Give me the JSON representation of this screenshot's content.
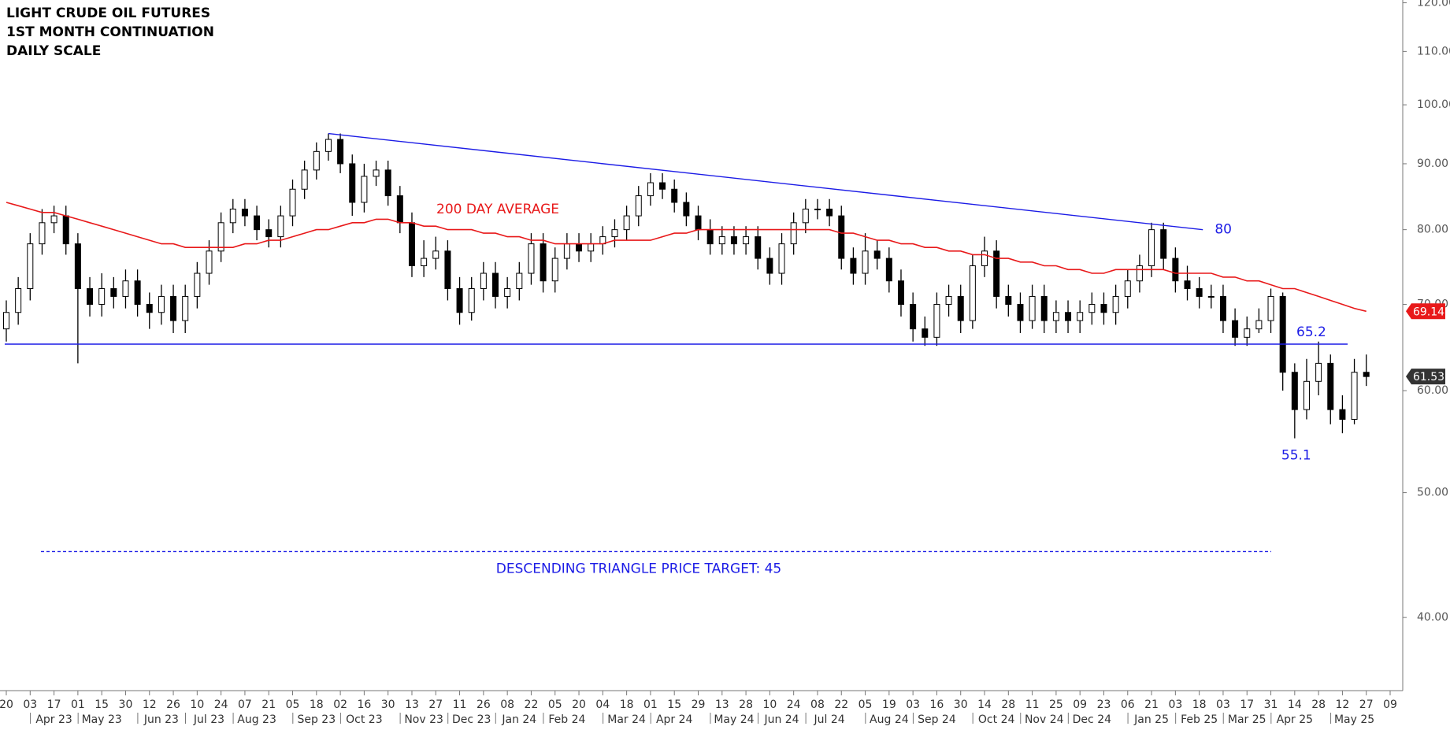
{
  "chart_data": {
    "type": "candlestick",
    "title_lines": [
      "LIGHT CRUDE OIL FUTURES",
      "1ST MONTH CONTINUATION",
      "DAILY SCALE"
    ],
    "log_scale": true,
    "ylim": [
      35.1,
      120.6
    ],
    "yticks": [
      {
        "value": 40,
        "label": "40.00"
      },
      {
        "value": 50,
        "label": "50.00"
      },
      {
        "value": 60,
        "label": "60.00"
      },
      {
        "value": 70,
        "label": "70.00"
      },
      {
        "value": 80,
        "label": "80.00"
      },
      {
        "value": 90,
        "label": "90.00"
      },
      {
        "value": 100,
        "label": "100.00"
      },
      {
        "value": 110,
        "label": "110.00"
      },
      {
        "value": 120,
        "label": "120.00"
      }
    ],
    "categories": [
      "20",
      null,
      "03",
      null,
      "17",
      null,
      "01",
      null,
      "15",
      null,
      "30",
      null,
      "12",
      null,
      "26",
      null,
      "10",
      null,
      "24",
      null,
      "07",
      null,
      "21",
      null,
      "05",
      null,
      "18",
      null,
      "02",
      null,
      "16",
      null,
      "30",
      null,
      "13",
      null,
      "27",
      null,
      "11",
      null,
      "26",
      null,
      "08",
      null,
      "22",
      null,
      "05",
      null,
      "20",
      null,
      "04",
      null,
      "18",
      null,
      "01",
      null,
      "15",
      null,
      "29",
      null,
      "13",
      null,
      "28",
      null,
      "10",
      null,
      "24",
      null,
      "08",
      null,
      "22",
      null,
      "05",
      null,
      "19",
      null,
      "03",
      null,
      "16",
      null,
      "30",
      null,
      "14",
      null,
      "28",
      null,
      "11",
      null,
      "25",
      null,
      "09",
      null,
      "23",
      null,
      "06",
      null,
      "21",
      null,
      "03",
      null,
      "18",
      null,
      "03",
      null,
      "17",
      null,
      "31",
      null,
      "14",
      null,
      "28",
      null,
      "12",
      null,
      "27",
      null,
      "09"
    ],
    "months": [
      null,
      null,
      null,
      null,
      "Apr 23",
      null,
      null,
      null,
      "May 23",
      null,
      null,
      null,
      null,
      "Jun 23",
      null,
      null,
      null,
      "Jul 23",
      null,
      null,
      null,
      "Aug 23",
      null,
      null,
      null,
      null,
      "Sep 23",
      null,
      null,
      null,
      "Oct 23",
      null,
      null,
      null,
      null,
      "Nov 23",
      null,
      null,
      null,
      "Dec 23",
      null,
      null,
      null,
      "Jan 24",
      null,
      null,
      null,
      "Feb 24",
      null,
      null,
      null,
      null,
      "Mar 24",
      null,
      null,
      null,
      "Apr 24",
      null,
      null,
      null,
      null,
      "May 24",
      null,
      null,
      null,
      "Jun 24",
      null,
      null,
      null,
      "Jul 24",
      null,
      null,
      null,
      null,
      "Aug 24",
      null,
      null,
      null,
      "Sep 24",
      null,
      null,
      null,
      null,
      "Oct 24",
      null,
      null,
      null,
      "Nov 24",
      null,
      null,
      null,
      "Dec 24",
      null,
      null,
      null,
      null,
      "Jan 25",
      null,
      null,
      null,
      "Feb 25",
      null,
      null,
      null,
      "Mar 25",
      null,
      null,
      null,
      "Apr 25",
      null,
      null,
      null,
      null,
      "May 25",
      null,
      null,
      null
    ],
    "open": [
      67,
      69,
      72,
      78,
      81,
      82,
      78,
      72,
      70,
      72,
      71,
      73,
      70,
      69,
      71,
      68,
      71,
      74,
      77,
      81,
      83,
      82,
      80,
      79,
      82,
      86,
      89,
      92,
      94,
      90,
      84,
      88,
      89,
      85,
      81,
      75,
      76,
      77,
      72,
      69,
      72,
      74,
      71,
      72,
      74,
      78,
      73,
      76,
      78,
      77,
      78,
      79,
      80,
      82,
      85,
      87,
      86,
      84,
      82,
      80,
      78,
      79,
      78,
      79,
      76,
      74,
      78,
      81,
      83,
      83,
      82,
      76,
      74,
      77,
      76,
      73,
      70,
      67,
      66,
      70,
      71,
      68,
      75,
      77,
      71,
      70,
      68,
      71,
      68,
      69,
      68,
      69,
      70,
      69,
      71,
      73,
      75,
      80,
      76,
      73,
      72,
      71,
      71,
      68,
      66,
      67,
      68,
      71,
      62,
      58,
      61,
      63,
      58,
      57,
      62,
      null,
      null
    ],
    "high": [
      70.5,
      73.5,
      79.5,
      83,
      83.5,
      83.5,
      79.5,
      73.5,
      74,
      73.5,
      74.5,
      74.5,
      71.5,
      72.5,
      72.5,
      72.5,
      75.5,
      78.5,
      82.5,
      84.5,
      84.5,
      83.5,
      81.5,
      83.5,
      87.5,
      90.5,
      93.5,
      95,
      95,
      91.5,
      90,
      90.5,
      90.5,
      86.5,
      82.5,
      78.5,
      79,
      78.5,
      73.5,
      73.5,
      75.5,
      75.5,
      73.5,
      75.5,
      79.5,
      79.5,
      77.5,
      79.5,
      79.5,
      79.5,
      80.5,
      81.5,
      83.5,
      86.5,
      88.5,
      88.5,
      87.5,
      85.5,
      83.5,
      81.5,
      80.5,
      80.5,
      80.5,
      80.5,
      77.5,
      79.5,
      82.5,
      84.5,
      84.5,
      84.5,
      83.5,
      77.5,
      79.5,
      78.5,
      77.5,
      74.5,
      71.5,
      68.5,
      71.5,
      72.5,
      72.5,
      76.5,
      79,
      78.5,
      72.5,
      71.5,
      72.5,
      72.5,
      70.5,
      70.5,
      70.5,
      71.5,
      71.5,
      72.5,
      74.5,
      76.5,
      81,
      81,
      77.5,
      75,
      73.5,
      72.5,
      72.5,
      69.5,
      68.5,
      69.5,
      72,
      71.5,
      63,
      63.5,
      65.5,
      64,
      59.5,
      63.5,
      64,
      null,
      null
    ],
    "low": [
      65.5,
      67.5,
      70.5,
      76.5,
      79.5,
      76.5,
      63,
      68.5,
      68.5,
      69.5,
      69.5,
      68.5,
      67,
      67.5,
      66.5,
      66.5,
      69.5,
      72.5,
      75.5,
      79.5,
      80.5,
      78.5,
      77.5,
      77.5,
      80.5,
      84.5,
      87.5,
      90.5,
      88.5,
      82,
      82.5,
      86.5,
      83.5,
      79.5,
      73.5,
      73.5,
      74.5,
      70.5,
      67.5,
      68,
      70.5,
      69.5,
      69.5,
      70.5,
      72.5,
      71.5,
      71.5,
      74.5,
      75.5,
      75.5,
      76.5,
      77.5,
      78.5,
      80.5,
      83.5,
      84.5,
      82.5,
      80.5,
      78.5,
      76.5,
      76.5,
      76.5,
      76.5,
      74.5,
      72.5,
      72.5,
      76.5,
      79.5,
      81.5,
      80.5,
      74.5,
      72.5,
      72.5,
      74.5,
      71.5,
      68.5,
      65.5,
      65,
      65,
      68.5,
      66.5,
      67,
      73.5,
      69.5,
      68.5,
      66.5,
      67,
      66.5,
      66.5,
      66.5,
      66.5,
      67.5,
      67.5,
      67.5,
      69.5,
      71.5,
      73.5,
      74.5,
      71.5,
      70.5,
      69.5,
      69.5,
      66.5,
      65,
      65,
      66.5,
      66.5,
      60,
      55.1,
      57,
      59.5,
      56.5,
      55.6,
      56.5,
      60.5,
      null,
      null
    ],
    "close": [
      69,
      72,
      78,
      81,
      82,
      78,
      72,
      70,
      72,
      71,
      73,
      70,
      69,
      71,
      68,
      71,
      74,
      77,
      81,
      83,
      82,
      80,
      79,
      82,
      86,
      89,
      92,
      94,
      90,
      84,
      88,
      89,
      85,
      81,
      75,
      76,
      77,
      72,
      69,
      72,
      74,
      71,
      72,
      74,
      78,
      73,
      76,
      78,
      77,
      78,
      79,
      80,
      82,
      85,
      87,
      86,
      84,
      82,
      80,
      78,
      79,
      78,
      79,
      76,
      74,
      78,
      81,
      83,
      83,
      82,
      76,
      74,
      77,
      76,
      73,
      70,
      67,
      66,
      70,
      71,
      68,
      75,
      77,
      71,
      70,
      68,
      71,
      68,
      69,
      68,
      69,
      70,
      69,
      71,
      73,
      75,
      80,
      76,
      73,
      72,
      71,
      71,
      68,
      66,
      67,
      68,
      71,
      62,
      58,
      61,
      63,
      58,
      57,
      62,
      61.53,
      null,
      null
    ],
    "ma": [
      84,
      83.5,
      83,
      82.5,
      82.5,
      82,
      81.5,
      81,
      80.5,
      80,
      79.5,
      79,
      78.5,
      78,
      78,
      77.5,
      77.5,
      77.5,
      77.5,
      77.5,
      78,
      78,
      78.5,
      78.5,
      79,
      79.5,
      80,
      80,
      80.5,
      81,
      81,
      81.5,
      81.5,
      81,
      81,
      80.5,
      80.5,
      80,
      80,
      80,
      79.5,
      79.5,
      79,
      79,
      78.5,
      78.5,
      78,
      78,
      78,
      78,
      78,
      78.5,
      78.5,
      78.5,
      78.5,
      79,
      79.5,
      79.5,
      80,
      80,
      80,
      80,
      80,
      80,
      80,
      80,
      80,
      80,
      80,
      80,
      79.5,
      79.5,
      79,
      78.5,
      78.5,
      78,
      78,
      77.5,
      77.5,
      77,
      77,
      76.5,
      76.5,
      76,
      76,
      75.5,
      75.5,
      75,
      75,
      74.5,
      74.5,
      74,
      74,
      74.5,
      74.5,
      74.5,
      74.5,
      74.5,
      74,
      74,
      74,
      74,
      73.5,
      73.5,
      73,
      73,
      72.5,
      72,
      72,
      71.5,
      71,
      70.5,
      70,
      69.5,
      69.14,
      null,
      null
    ],
    "ma_label": "200 DAY AVERAGE",
    "ma_color": "#e8191a",
    "candle_color": "#000000",
    "line_color": "#1c1ce6",
    "resistance": 80,
    "support": 65.2,
    "target": 45,
    "target_label": "DESCENDING TRIANGLE PRICE TARGET: 45",
    "last_tag_color": "#333333"
  }
}
